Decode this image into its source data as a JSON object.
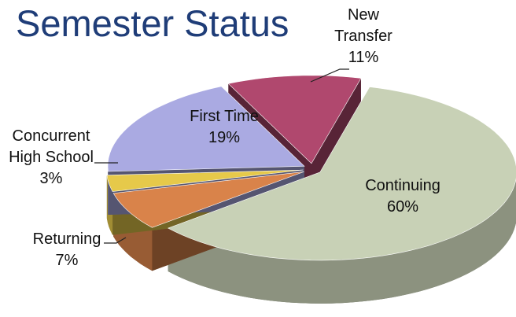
{
  "chart_data": {
    "type": "pie",
    "title": "Semester Status",
    "categories": [
      "New Transfer",
      "Continuing",
      "Returning",
      "Concurrent High School",
      "First Time"
    ],
    "values": [
      11,
      60,
      7,
      3,
      19
    ],
    "value_labels": [
      "11%",
      "60%",
      "7%",
      "3%",
      "19%"
    ],
    "colors": [
      "#b0486e",
      "#c8d1b6",
      "#d9834a",
      "#e6c94a",
      "#aaaae2"
    ]
  }
}
